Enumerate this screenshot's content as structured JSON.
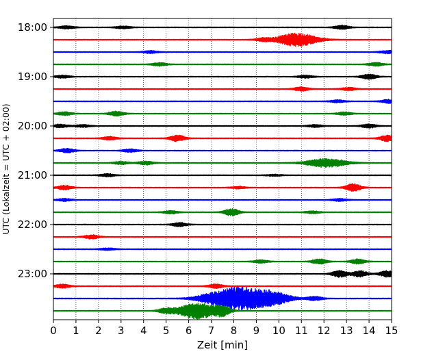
{
  "chart_data": {
    "type": "line",
    "title": "",
    "xlabel": "Zeit  [min]",
    "ylabel": "UTC (Lokalzeit = UTC + 02:00)",
    "x_ticks": [
      0,
      1,
      2,
      3,
      4,
      5,
      6,
      7,
      8,
      9,
      10,
      11,
      12,
      13,
      14,
      15
    ],
    "xlim": [
      0,
      15
    ],
    "y_ticks": [
      "18:00",
      "19:00",
      "20:00",
      "21:00",
      "22:00",
      "23:00"
    ],
    "grid": "vertical dotted lines at each minute",
    "trace_interval_minutes": 15,
    "color_cycle": [
      "#000000",
      "#ff0000",
      "#0000ff",
      "#008000"
    ],
    "traces": [
      {
        "start": "18:00",
        "color": "#000000",
        "bursts": [
          {
            "t": 0.6,
            "a": 0.35
          },
          {
            "t": 3.1,
            "a": 0.3
          },
          {
            "t": 12.8,
            "a": 0.45
          }
        ]
      },
      {
        "start": "18:15",
        "color": "#ff0000",
        "bursts": [
          {
            "t": 9.3,
            "a": 0.35
          },
          {
            "t": 10.8,
            "a": 1.6
          }
        ]
      },
      {
        "start": "18:30",
        "color": "#0000ff",
        "bursts": [
          {
            "t": 4.3,
            "a": 0.3
          },
          {
            "t": 14.8,
            "a": 0.35
          }
        ]
      },
      {
        "start": "18:45",
        "color": "#008000",
        "bursts": [
          {
            "t": 4.7,
            "a": 0.4
          },
          {
            "t": 14.3,
            "a": 0.4
          }
        ]
      },
      {
        "start": "19:00",
        "color": "#000000",
        "bursts": [
          {
            "t": 0.4,
            "a": 0.3
          },
          {
            "t": 11.2,
            "a": 0.3
          },
          {
            "t": 14.0,
            "a": 0.6
          }
        ]
      },
      {
        "start": "19:15",
        "color": "#ff0000",
        "bursts": [
          {
            "t": 11.0,
            "a": 0.45
          },
          {
            "t": 13.1,
            "a": 0.35
          }
        ]
      },
      {
        "start": "19:30",
        "color": "#0000ff",
        "bursts": [
          {
            "t": 12.6,
            "a": 0.3
          },
          {
            "t": 14.9,
            "a": 0.45
          }
        ]
      },
      {
        "start": "19:45",
        "color": "#008000",
        "bursts": [
          {
            "t": 0.5,
            "a": 0.4
          },
          {
            "t": 2.8,
            "a": 0.55
          },
          {
            "t": 12.9,
            "a": 0.35
          }
        ]
      },
      {
        "start": "20:00",
        "color": "#000000",
        "bursts": [
          {
            "t": 0.3,
            "a": 0.4
          },
          {
            "t": 1.3,
            "a": 0.3
          },
          {
            "t": 11.6,
            "a": 0.3
          },
          {
            "t": 14.0,
            "a": 0.45
          }
        ]
      },
      {
        "start": "20:15",
        "color": "#ff0000",
        "bursts": [
          {
            "t": 2.5,
            "a": 0.4
          },
          {
            "t": 5.5,
            "a": 0.75
          },
          {
            "t": 14.8,
            "a": 0.7
          }
        ]
      },
      {
        "start": "20:30",
        "color": "#0000ff",
        "bursts": [
          {
            "t": 0.6,
            "a": 0.5
          },
          {
            "t": 3.4,
            "a": 0.35
          }
        ]
      },
      {
        "start": "20:45",
        "color": "#008000",
        "bursts": [
          {
            "t": 3.0,
            "a": 0.35
          },
          {
            "t": 4.1,
            "a": 0.45
          },
          {
            "t": 12.1,
            "a": 1.05
          }
        ]
      },
      {
        "start": "21:00",
        "color": "#000000",
        "bursts": [
          {
            "t": 2.4,
            "a": 0.35
          },
          {
            "t": 9.8,
            "a": 0.2
          }
        ]
      },
      {
        "start": "21:15",
        "color": "#ff0000",
        "bursts": [
          {
            "t": 0.5,
            "a": 0.5
          },
          {
            "t": 8.2,
            "a": 0.25
          },
          {
            "t": 13.3,
            "a": 0.9
          }
        ]
      },
      {
        "start": "21:30",
        "color": "#0000ff",
        "bursts": [
          {
            "t": 0.5,
            "a": 0.3
          },
          {
            "t": 12.7,
            "a": 0.3
          }
        ]
      },
      {
        "start": "21:45",
        "color": "#008000",
        "bursts": [
          {
            "t": 5.2,
            "a": 0.35
          },
          {
            "t": 7.9,
            "a": 0.85
          },
          {
            "t": 11.5,
            "a": 0.3
          }
        ]
      },
      {
        "start": "22:00",
        "color": "#000000",
        "bursts": [
          {
            "t": 5.6,
            "a": 0.45
          }
        ]
      },
      {
        "start": "22:15",
        "color": "#ff0000",
        "bursts": [
          {
            "t": 1.7,
            "a": 0.45
          }
        ]
      },
      {
        "start": "22:30",
        "color": "#0000ff",
        "bursts": [
          {
            "t": 2.4,
            "a": 0.25
          }
        ]
      },
      {
        "start": "22:45",
        "color": "#008000",
        "bursts": [
          {
            "t": 9.2,
            "a": 0.35
          },
          {
            "t": 11.8,
            "a": 0.6
          },
          {
            "t": 13.5,
            "a": 0.55
          }
        ]
      },
      {
        "start": "23:00",
        "color": "#000000",
        "bursts": [
          {
            "t": 12.7,
            "a": 0.8
          },
          {
            "t": 13.6,
            "a": 0.75
          },
          {
            "t": 14.8,
            "a": 0.75
          }
        ]
      },
      {
        "start": "23:15",
        "color": "#ff0000",
        "bursts": [
          {
            "t": 0.4,
            "a": 0.45
          },
          {
            "t": 7.2,
            "a": 0.5
          }
        ]
      },
      {
        "start": "23:30",
        "color": "#0000ff",
        "bursts": [
          {
            "t": 7.2,
            "a": 1.2
          },
          {
            "t": 8.3,
            "a": 2.3
          },
          {
            "t": 9.6,
            "a": 1.7
          },
          {
            "t": 11.6,
            "a": 0.5
          }
        ]
      },
      {
        "start": "23:45",
        "color": "#008000",
        "bursts": [
          {
            "t": 5.0,
            "a": 0.55
          },
          {
            "t": 6.4,
            "a": 1.9
          },
          {
            "t": 7.5,
            "a": 1.0
          }
        ]
      }
    ]
  }
}
